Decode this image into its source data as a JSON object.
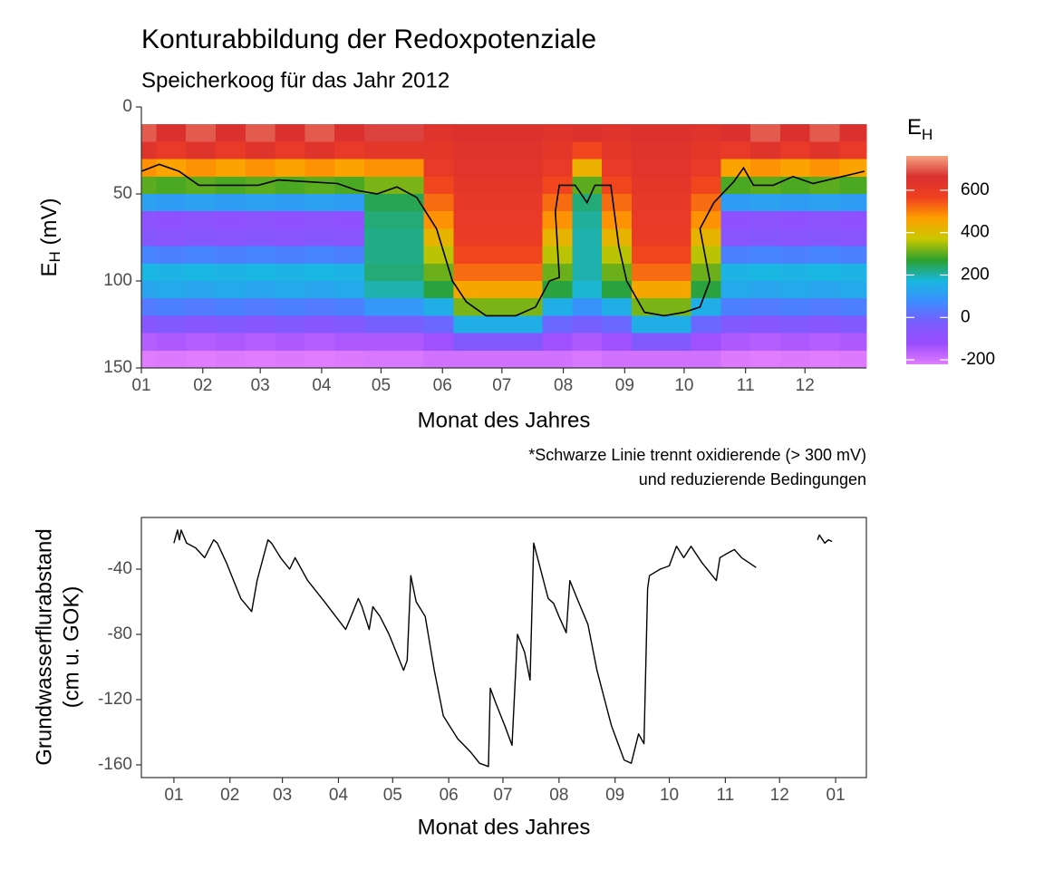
{
  "chart_data": [
    {
      "type": "contour",
      "title": "Konturabbildung der Redoxpotenziale",
      "subtitle": "Speicherkoog für das Jahr 2012",
      "x_label": "Monat des Jahres",
      "y_label": [
        "E",
        "H",
        " (mV)"
      ],
      "legend_title": [
        "E",
        "H"
      ],
      "annotation": [
        "*Schwarze Linie trennt oxidierende (> 300 mV)",
        "und reduzierende Bedingungen"
      ],
      "xlim": [
        1,
        367
      ],
      "xticks": [
        {
          "value": 1,
          "label": "01"
        },
        {
          "value": 32,
          "label": "02"
        },
        {
          "value": 61,
          "label": "03"
        },
        {
          "value": 92,
          "label": "04"
        },
        {
          "value": 122,
          "label": "05"
        },
        {
          "value": 153,
          "label": "06"
        },
        {
          "value": 183,
          "label": "07"
        },
        {
          "value": 214,
          "label": "08"
        },
        {
          "value": 245,
          "label": "09"
        },
        {
          "value": 275,
          "label": "10"
        },
        {
          "value": 306,
          "label": "11"
        },
        {
          "value": 336,
          "label": "12"
        }
      ],
      "ylim": [
        150,
        0
      ],
      "yticks": [
        0,
        50,
        100,
        150
      ],
      "x": [
        1,
        16,
        31,
        46,
        61,
        76,
        91,
        106,
        121,
        136,
        151,
        166,
        181,
        196,
        211,
        226,
        241,
        256,
        271,
        286,
        301,
        316,
        331,
        346,
        361
      ],
      "y": [
        15,
        25,
        35,
        45,
        55,
        65,
        75,
        85,
        95,
        105,
        115,
        125,
        135,
        145
      ],
      "z": [
        [
          700,
          640,
          480,
          300,
          120,
          -80,
          -60,
          60,
          170,
          130,
          40,
          -60,
          -160,
          -220
        ],
        [
          660,
          600,
          460,
          290,
          110,
          -90,
          -70,
          50,
          160,
          140,
          50,
          -50,
          -150,
          -215
        ],
        [
          700,
          640,
          480,
          300,
          120,
          -80,
          -60,
          60,
          170,
          130,
          40,
          -60,
          -160,
          -220
        ],
        [
          660,
          600,
          460,
          290,
          110,
          -90,
          -70,
          50,
          160,
          140,
          50,
          -50,
          -150,
          -215
        ],
        [
          700,
          640,
          480,
          300,
          120,
          -80,
          -60,
          60,
          170,
          130,
          40,
          -60,
          -160,
          -220
        ],
        [
          660,
          600,
          460,
          290,
          110,
          -90,
          -70,
          50,
          160,
          140,
          50,
          -50,
          -150,
          -215
        ],
        [
          700,
          640,
          480,
          300,
          120,
          -80,
          -60,
          60,
          170,
          130,
          40,
          -60,
          -160,
          -220
        ],
        [
          660,
          600,
          460,
          290,
          110,
          -90,
          -70,
          50,
          160,
          140,
          50,
          -50,
          -150,
          -215
        ],
        [
          680,
          620,
          480,
          320,
          250,
          230,
          220,
          220,
          230,
          200,
          100,
          -20,
          -150,
          -210
        ],
        [
          680,
          620,
          480,
          320,
          250,
          230,
          220,
          220,
          230,
          200,
          100,
          -20,
          -150,
          -210
        ],
        [
          640,
          620,
          600,
          560,
          520,
          480,
          420,
          360,
          310,
          260,
          150,
          0,
          -130,
          -200
        ],
        [
          650,
          640,
          630,
          620,
          610,
          600,
          590,
          560,
          520,
          450,
          320,
          150,
          -50,
          -200
        ],
        [
          650,
          640,
          630,
          620,
          610,
          600,
          590,
          560,
          520,
          450,
          320,
          150,
          -50,
          -200
        ],
        [
          650,
          640,
          630,
          620,
          610,
          600,
          590,
          560,
          520,
          450,
          320,
          150,
          -50,
          -200
        ],
        [
          640,
          620,
          600,
          560,
          520,
          480,
          420,
          360,
          310,
          260,
          150,
          0,
          -130,
          -200
        ],
        [
          650,
          560,
          430,
          300,
          230,
          210,
          200,
          200,
          200,
          180,
          90,
          -20,
          -150,
          -210
        ],
        [
          640,
          620,
          600,
          560,
          520,
          480,
          420,
          360,
          310,
          260,
          150,
          0,
          -130,
          -200
        ],
        [
          650,
          640,
          630,
          620,
          610,
          600,
          590,
          560,
          520,
          450,
          320,
          150,
          -50,
          -200
        ],
        [
          650,
          640,
          630,
          620,
          610,
          600,
          590,
          560,
          520,
          450,
          320,
          150,
          -50,
          -200
        ],
        [
          640,
          620,
          600,
          560,
          520,
          480,
          420,
          360,
          310,
          260,
          150,
          0,
          -130,
          -200
        ],
        [
          660,
          600,
          460,
          290,
          110,
          -90,
          -70,
          50,
          160,
          140,
          50,
          -50,
          -150,
          -215
        ],
        [
          700,
          640,
          480,
          300,
          120,
          -80,
          -60,
          60,
          170,
          130,
          40,
          -60,
          -160,
          -220
        ],
        [
          660,
          600,
          460,
          290,
          110,
          -90,
          -70,
          50,
          160,
          140,
          50,
          -50,
          -150,
          -215
        ],
        [
          700,
          640,
          480,
          300,
          120,
          -80,
          -60,
          60,
          170,
          130,
          40,
          -60,
          -160,
          -220
        ],
        [
          660,
          600,
          460,
          290,
          110,
          -90,
          -70,
          50,
          160,
          140,
          50,
          -50,
          -150,
          -215
        ]
      ],
      "zlim": [
        -221,
        762
      ],
      "zticks": [
        -200,
        0,
        200,
        400,
        600
      ],
      "colors": [
        "#e07cff",
        "#9a4cff",
        "#7a5cff",
        "#3d8cff",
        "#18b8e0",
        "#2ca02c",
        "#c8c800",
        "#ffa000",
        "#f04020",
        "#d93030",
        "#f4a582"
      ],
      "contour": {
        "color": "#000000",
        "x": [
          1,
          10,
          20,
          30,
          60,
          70,
          100,
          110,
          120,
          130,
          140,
          150,
          158,
          165,
          175,
          190,
          200,
          207,
          212,
          210,
          212,
          220,
          226,
          230,
          238,
          242,
          246,
          255,
          265,
          275,
          283,
          288,
          283,
          290,
          300,
          305,
          310,
          320,
          330,
          340,
          366
        ],
        "y": [
          37,
          33,
          37,
          45,
          45,
          42,
          44,
          48,
          50,
          46,
          52,
          70,
          100,
          112,
          120,
          120,
          115,
          100,
          98,
          60,
          45,
          45,
          55,
          45,
          45,
          80,
          100,
          118,
          120,
          118,
          115,
          100,
          70,
          55,
          43,
          35,
          45,
          45,
          40,
          44,
          37
        ]
      }
    },
    {
      "type": "line",
      "x_label": "Monat des Jahres",
      "y_label": [
        "Grundwasserflurabstand",
        "(cm u. GOK)"
      ],
      "color": "#000000",
      "xlim": [
        -17,
        384
      ],
      "xticks": [
        {
          "value": 1,
          "label": "01"
        },
        {
          "value": 32,
          "label": "02"
        },
        {
          "value": 61,
          "label": "03"
        },
        {
          "value": 92,
          "label": "04"
        },
        {
          "value": 122,
          "label": "05"
        },
        {
          "value": 153,
          "label": "06"
        },
        {
          "value": 183,
          "label": "07"
        },
        {
          "value": 214,
          "label": "08"
        },
        {
          "value": 245,
          "label": "09"
        },
        {
          "value": 275,
          "label": "10"
        },
        {
          "value": 306,
          "label": "11"
        },
        {
          "value": 336,
          "label": "12"
        },
        {
          "value": 367,
          "label": "01"
        }
      ],
      "ylim": [
        -167.8,
        -8.3
      ],
      "yticks": [
        -160,
        -120,
        -80,
        -40
      ],
      "x": [
        1,
        3,
        4,
        5,
        8,
        13,
        18,
        23,
        25,
        30,
        38,
        44,
        47,
        53,
        55,
        60,
        65,
        68,
        75,
        85,
        96,
        99,
        103,
        105,
        109,
        111,
        115,
        120,
        128,
        130,
        132,
        135,
        140,
        145,
        150,
        158,
        165,
        170,
        175,
        176,
        179,
        184,
        188,
        191,
        195,
        198,
        200,
        204,
        208,
        211,
        214,
        218,
        220,
        224,
        230,
        235,
        243,
        250,
        254,
        258,
        261,
        263,
        264,
        270,
        275,
        279,
        283,
        287,
        293,
        301,
        303,
        306,
        311,
        315,
        323,
        340,
        357,
        358,
        361,
        363,
        365
      ],
      "values": [
        -24,
        -16,
        -22,
        -16,
        -24,
        -27,
        -33,
        -22,
        -24,
        -36,
        -58,
        -66,
        -47,
        -22,
        -24,
        -33,
        -40,
        -33,
        -47,
        -61,
        -77,
        -69,
        -58,
        -63,
        -77,
        -63,
        -69,
        -80,
        -102,
        -96,
        -44,
        -60,
        -69,
        -102,
        -130,
        -144,
        -152,
        -159,
        -161,
        -113,
        -122,
        -136,
        -148,
        -80,
        -91,
        -108,
        -24,
        -41,
        -58,
        -61,
        -69,
        -79,
        -47,
        -58,
        -74,
        -102,
        -136,
        -157,
        -159,
        -141,
        -147,
        -52,
        -44,
        -40,
        -38,
        -26,
        -33,
        -26,
        -36,
        -47,
        -33,
        -31,
        -28,
        -33,
        -39,
        null,
        -22,
        -19,
        -24,
        -22,
        -23
      ]
    }
  ]
}
